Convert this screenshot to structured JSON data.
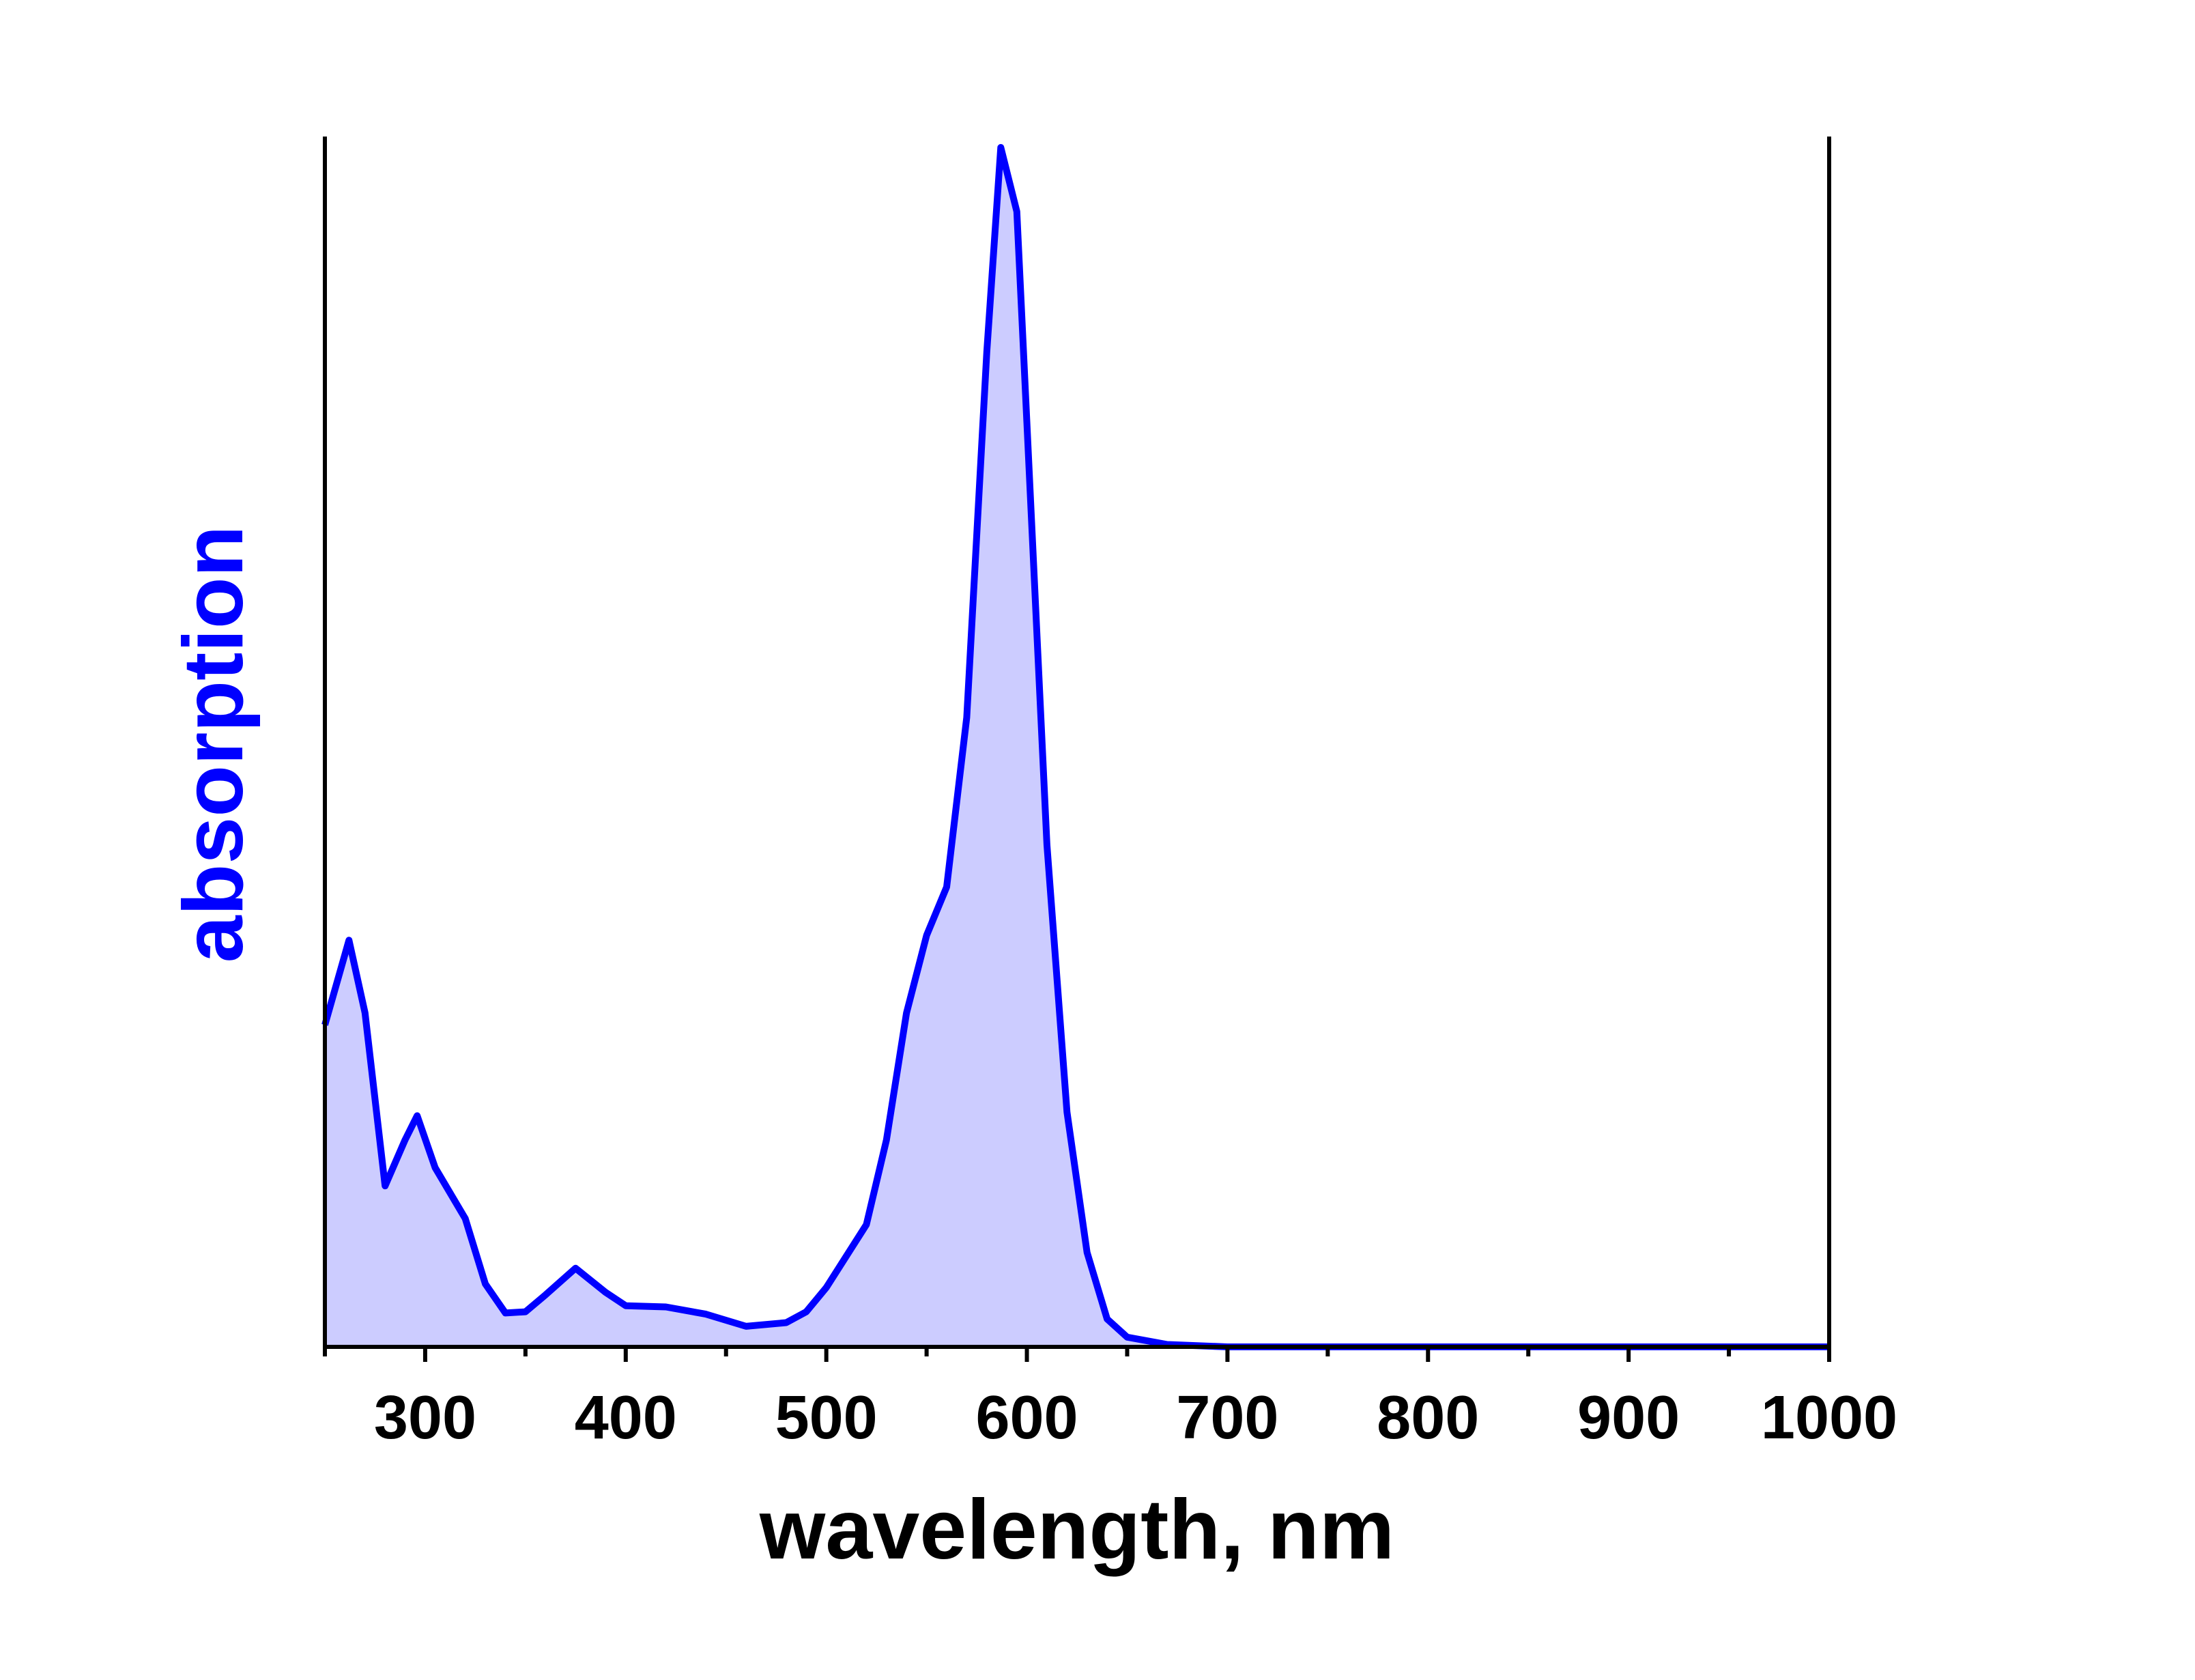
{
  "chart_data": {
    "type": "area",
    "xlabel": "wavelength, nm",
    "ylabel": "absorption",
    "x": [
      250,
      262,
      270,
      280,
      290,
      296,
      305,
      320,
      330,
      340,
      350,
      360,
      375,
      390,
      400,
      420,
      440,
      460,
      480,
      490,
      500,
      520,
      530,
      540,
      550,
      560,
      570,
      580,
      587,
      595,
      600,
      610,
      620,
      630,
      640,
      650,
      670,
      700,
      1000
    ],
    "values": [
      0.266,
      0.336,
      0.276,
      0.133,
      0.171,
      0.191,
      0.148,
      0.106,
      0.052,
      0.028,
      0.029,
      0.043,
      0.065,
      0.045,
      0.034,
      0.033,
      0.027,
      0.017,
      0.02,
      0.029,
      0.049,
      0.101,
      0.171,
      0.276,
      0.34,
      0.38,
      0.52,
      0.822,
      0.991,
      0.938,
      0.764,
      0.415,
      0.194,
      0.078,
      0.023,
      0.008,
      0.002,
      0,
      0
    ],
    "color": "#0000ff",
    "fill_color": "#ccccff",
    "xlim": [
      250,
      1000
    ],
    "ylim": [
      0,
      1
    ],
    "xticks": [
      300,
      400,
      500,
      600,
      700,
      800,
      900,
      1000
    ],
    "xminorticks": [
      250,
      350,
      450,
      550,
      650,
      750,
      850,
      950
    ]
  }
}
